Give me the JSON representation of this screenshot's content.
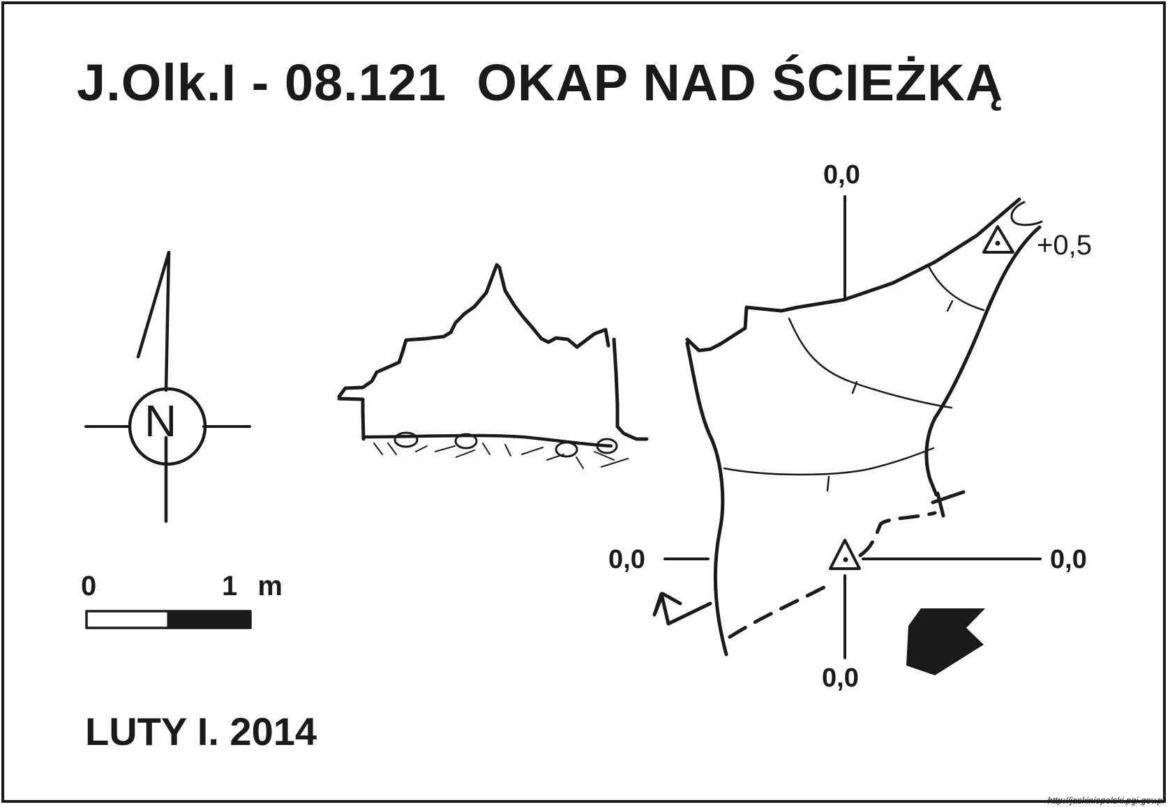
{
  "title": "J.Olk.I - 08.121  OKAP NAD ŚCIEŻKĄ",
  "date": "LUTY I. 2014",
  "compass": {
    "letter": "N"
  },
  "scale_bar": {
    "start_label": "0",
    "end_label": "1 m"
  },
  "elevations": {
    "top": "0,0",
    "left": "0,0",
    "right": "0,0",
    "bottom": "0,0",
    "upper_point": "+0,5"
  },
  "entrance_arrow_icon": "arrow-up-left-icon",
  "credit": "http://jaskiniepolski.pgi.gov.pl"
}
